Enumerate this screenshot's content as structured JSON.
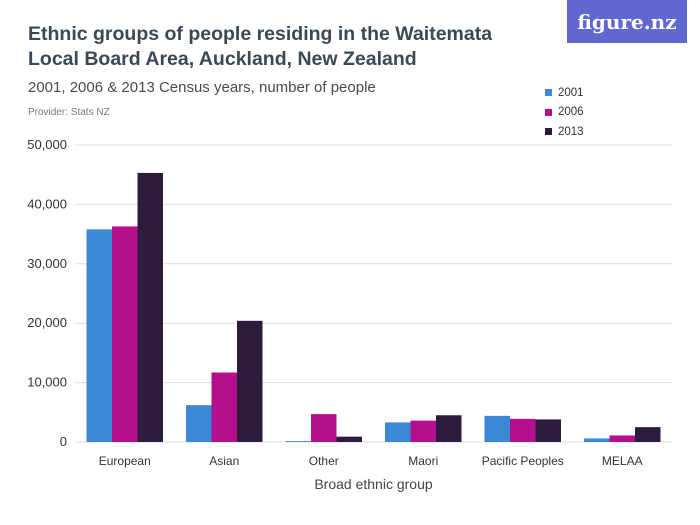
{
  "header": {
    "title": "Ethnic groups of people residing in the Waitemata Local Board Area, Auckland, New Zealand",
    "subtitle": "2001, 2006 & 2013 Census years, number of people",
    "provider": "Provider: Stats NZ",
    "logo_text": "figure.nz"
  },
  "colors": {
    "series_2001": "#3d88d6",
    "series_2006": "#b5108c",
    "series_2013": "#2d1b3d",
    "grid": "#dddddd",
    "logo_bg": "#6068d0"
  },
  "chart_data": {
    "type": "bar",
    "title": "Ethnic groups of people residing in the Waitemata Local Board Area, Auckland, New Zealand",
    "subtitle": "2001, 2006 & 2013 Census years, number of people",
    "xlabel": "Broad ethnic group",
    "ylabel": "",
    "ylim": [
      0,
      50000
    ],
    "yticks": [
      0,
      10000,
      20000,
      30000,
      40000,
      50000
    ],
    "ytick_labels": [
      "0",
      "10,000",
      "20,000",
      "30,000",
      "40,000",
      "50,000"
    ],
    "grid": true,
    "legend_position": "top-right",
    "categories": [
      "European",
      "Asian",
      "Other",
      "Maori",
      "Pacific Peoples",
      "MELAA"
    ],
    "series": [
      {
        "name": "2001",
        "values": [
          35800,
          6200,
          150,
          3300,
          4400,
          600
        ]
      },
      {
        "name": "2006",
        "values": [
          36300,
          11700,
          4700,
          3600,
          3900,
          1100
        ]
      },
      {
        "name": "2013",
        "values": [
          45300,
          20400,
          900,
          4500,
          3800,
          2500
        ]
      }
    ]
  }
}
